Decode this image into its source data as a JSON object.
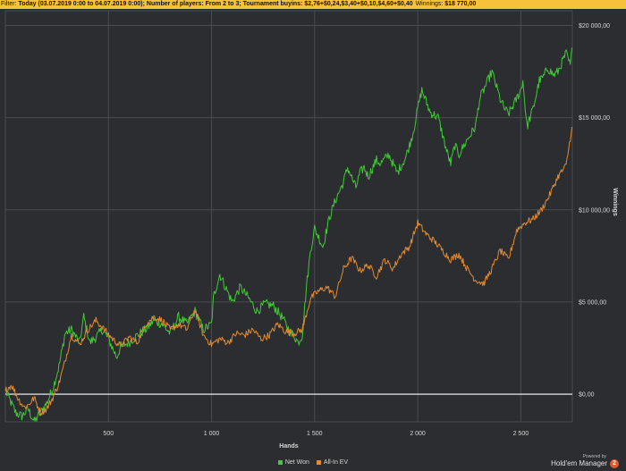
{
  "filter_bar": {
    "label": "Filter:",
    "text": "Today (03.07.2019 0:00 to 04.07.2019 0:00); Number of players: From 2 to 3; Tournament buyins: $2,76+$0,24,$3,40+$0,10,$4,60+$0,40",
    "winnings_label": "Winnings:",
    "winnings_value": "$18 770,00"
  },
  "colors": {
    "background": "#2b2d30",
    "filter_bar": "#f6c239",
    "net_won": "#41c937",
    "all_in_ev": "#e58a2e",
    "zero_line": "#ffffff",
    "grid": "#4a4c50"
  },
  "branding": {
    "powered_by": "Powered by",
    "product": "Hold'em Manager",
    "logo_text": "2"
  },
  "chart_data": {
    "type": "line",
    "xlabel": "Hands",
    "ylabel": "Winnings",
    "xlim": [
      0,
      2750
    ],
    "ylim": [
      -1500,
      20800
    ],
    "x_ticks": [
      500,
      1000,
      1500,
      2000,
      2500
    ],
    "x_tick_labels": [
      "500",
      "1 000",
      "1 500",
      "2 000",
      "2 500"
    ],
    "y_ticks": [
      0,
      5000,
      10000,
      15000,
      20000
    ],
    "y_tick_labels": [
      "$0,00",
      "$5 000,00",
      "$10 000,00",
      "$15 000,00",
      "$20 000,00"
    ],
    "grid": true,
    "legend_position": "bottom-center",
    "series": [
      {
        "name": "Net Won",
        "color": "#41c937",
        "x": [
          0,
          50,
          80,
          110,
          140,
          170,
          200,
          230,
          260,
          290,
          320,
          360,
          380,
          410,
          440,
          470,
          500,
          540,
          560,
          600,
          640,
          680,
          720,
          760,
          800,
          840,
          880,
          920,
          960,
          1000,
          1010,
          1040,
          1080,
          1100,
          1140,
          1180,
          1220,
          1260,
          1300,
          1340,
          1380,
          1400,
          1420,
          1440,
          1460,
          1480,
          1500,
          1540,
          1570,
          1600,
          1620,
          1640,
          1660,
          1700,
          1720,
          1740,
          1760,
          1800,
          1820,
          1860,
          1900,
          1940,
          1960,
          1980,
          2000,
          2020,
          2060,
          2100,
          2140,
          2160,
          2180,
          2200,
          2240,
          2280,
          2300,
          2320,
          2340,
          2360,
          2400,
          2420,
          2440,
          2470,
          2500,
          2510,
          2530,
          2560,
          2590,
          2610,
          2630,
          2660,
          2680,
          2700,
          2720,
          2740,
          2748
        ],
        "y": [
          200,
          -1000,
          -1200,
          -800,
          -1500,
          -1000,
          -500,
          300,
          1500,
          3300,
          3500,
          2800,
          4200,
          2800,
          3100,
          3500,
          3000,
          2000,
          2600,
          2800,
          3200,
          3500,
          4000,
          3800,
          3300,
          4200,
          3800,
          4500,
          3500,
          3800,
          5300,
          6500,
          5500,
          5000,
          5800,
          5200,
          4500,
          4900,
          4800,
          4200,
          3400,
          3200,
          2800,
          3200,
          5800,
          7800,
          9000,
          8000,
          9500,
          10500,
          11000,
          11500,
          12300,
          11200,
          12000,
          12300,
          11800,
          12700,
          12500,
          13000,
          12000,
          12800,
          13500,
          14300,
          15500,
          16500,
          15300,
          15000,
          13200,
          12500,
          13500,
          13000,
          13800,
          14500,
          16000,
          16500,
          17000,
          17500,
          16000,
          15500,
          15200,
          15800,
          16500,
          17000,
          14500,
          15500,
          17000,
          17200,
          17700,
          17300,
          17500,
          18000,
          18500,
          17800,
          18800
        ]
      },
      {
        "name": "All-In EV",
        "color": "#e58a2e",
        "x": [
          0,
          30,
          60,
          90,
          110,
          140,
          170,
          200,
          230,
          260,
          290,
          320,
          360,
          400,
          440,
          480,
          520,
          560,
          600,
          640,
          680,
          720,
          760,
          800,
          840,
          880,
          920,
          960,
          1000,
          1040,
          1080,
          1120,
          1160,
          1200,
          1240,
          1280,
          1320,
          1360,
          1400,
          1440,
          1480,
          1520,
          1560,
          1600,
          1640,
          1680,
          1720,
          1760,
          1800,
          1840,
          1880,
          1920,
          1960,
          2000,
          2040,
          2080,
          2120,
          2160,
          2200,
          2240,
          2280,
          2320,
          2360,
          2400,
          2440,
          2480,
          2520,
          2560,
          2600,
          2640,
          2680,
          2720,
          2748
        ],
        "y": [
          200,
          500,
          -200,
          -700,
          -600,
          -200,
          -1000,
          -800,
          -200,
          600,
          1800,
          3200,
          2700,
          3500,
          4000,
          3500,
          3000,
          2600,
          3100,
          2800,
          3800,
          4200,
          4000,
          3500,
          3800,
          3500,
          4600,
          3200,
          2700,
          3000,
          2800,
          3300,
          3200,
          3500,
          3000,
          3200,
          3800,
          3400,
          3300,
          3500,
          5200,
          5600,
          5800,
          5300,
          6800,
          7400,
          6700,
          7000,
          6400,
          7300,
          6800,
          7600,
          8000,
          9300,
          8700,
          8300,
          7800,
          7300,
          7600,
          6800,
          6200,
          6000,
          6800,
          7800,
          7300,
          8900,
          9300,
          9500,
          10000,
          10800,
          11800,
          12400,
          14500
        ]
      }
    ]
  }
}
